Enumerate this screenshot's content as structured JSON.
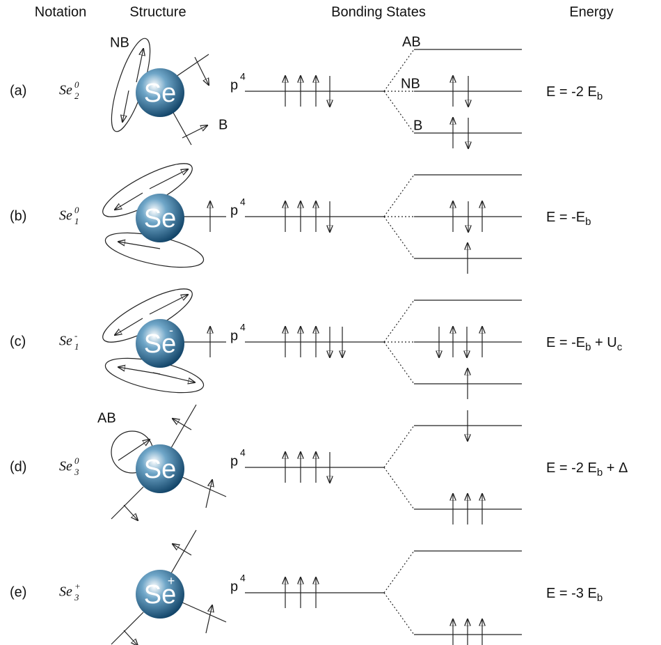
{
  "headers": [
    "Notation",
    "Structure",
    "Bonding States",
    "Energy"
  ],
  "rows": [
    {
      "label": "(a)",
      "notation": {
        "base": "Se",
        "sub": "2",
        "sup": "0"
      },
      "atom": "Se",
      "orbital": {
        "base": "p",
        "sup": "4"
      },
      "level_labels": [
        "AB",
        "NB",
        "B"
      ],
      "structure_labels": [
        "NB",
        "B"
      ],
      "energy": [
        {
          "text": "E = -2 E"
        },
        {
          "sub": "b"
        }
      ]
    },
    {
      "label": "(b)",
      "notation": {
        "base": "Se",
        "sub": "1",
        "sup": "0"
      },
      "atom": "Se",
      "orbital": {
        "base": "p",
        "sup": "4"
      },
      "energy": [
        {
          "text": "E = -E"
        },
        {
          "sub": "b"
        }
      ]
    },
    {
      "label": "(c)",
      "notation": {
        "base": "Se",
        "sub": "1",
        "sup": "-"
      },
      "atom": "Se",
      "charge": "-",
      "orbital": {
        "base": "p",
        "sup": "4"
      },
      "energy": [
        {
          "text": "E = -E"
        },
        {
          "sub": "b"
        },
        {
          "text": " + U"
        },
        {
          "sub": "c"
        }
      ]
    },
    {
      "label": "(d)",
      "notation": {
        "base": "Se",
        "sub": "3",
        "sup": "0"
      },
      "atom": "Se",
      "orbital": {
        "base": "p",
        "sup": "4"
      },
      "structure_labels": [
        "AB"
      ],
      "energy": [
        {
          "text": "E = -2 E"
        },
        {
          "sub": "b"
        },
        {
          "text": " + Δ"
        }
      ]
    },
    {
      "label": "(e)",
      "notation": {
        "base": "Se",
        "sub": "3",
        "sup": "+"
      },
      "atom": "Se",
      "charge": "+",
      "orbital": {
        "base": "p",
        "sup": "4"
      },
      "energy": [
        {
          "text": "E = -3 E"
        },
        {
          "sub": "b"
        }
      ]
    }
  ]
}
